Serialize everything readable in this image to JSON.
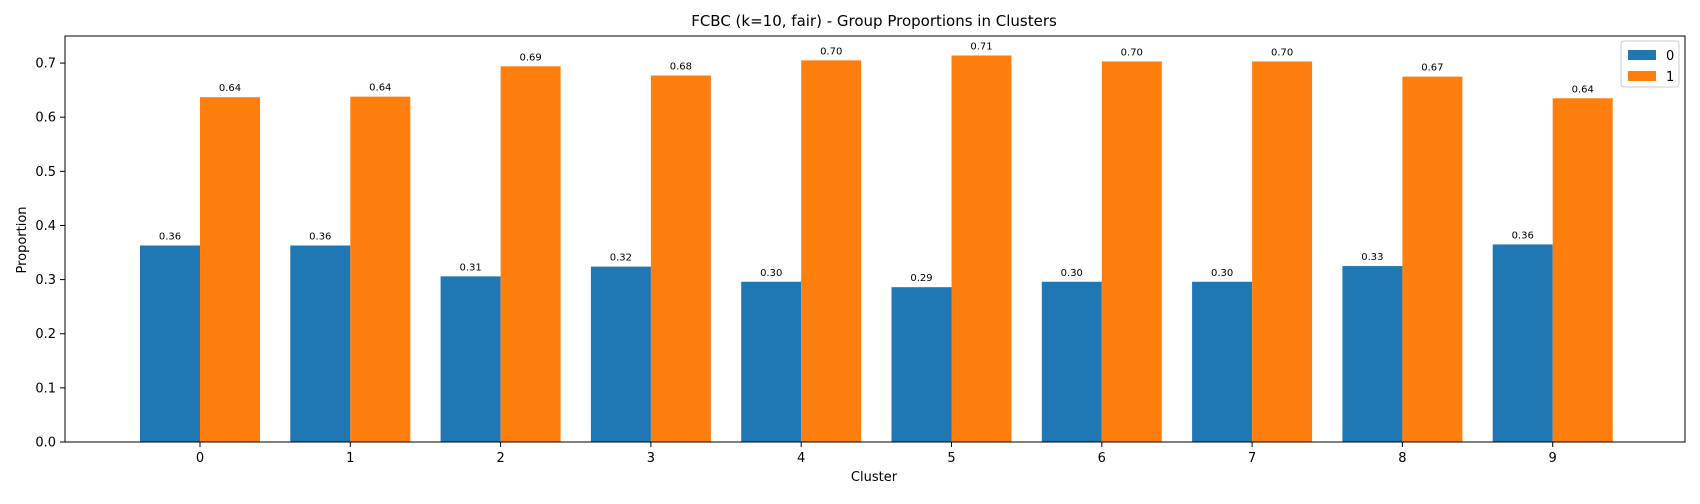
{
  "chart_data": {
    "type": "bar",
    "title": "FCBC (k=10, fair) - Group Proportions in Clusters",
    "xlabel": "Cluster",
    "ylabel": "Proportion",
    "categories": [
      "0",
      "1",
      "2",
      "3",
      "4",
      "5",
      "6",
      "7",
      "8",
      "9"
    ],
    "series": [
      {
        "name": "0",
        "color": "#1f77b4",
        "values": [
          0.363,
          0.363,
          0.306,
          0.324,
          0.296,
          0.286,
          0.296,
          0.296,
          0.325,
          0.365
        ],
        "labels": [
          "0.36",
          "0.36",
          "0.31",
          "0.32",
          "0.30",
          "0.29",
          "0.30",
          "0.30",
          "0.33",
          "0.36"
        ]
      },
      {
        "name": "1",
        "color": "#ff7f0e",
        "values": [
          0.637,
          0.638,
          0.694,
          0.677,
          0.705,
          0.714,
          0.703,
          0.703,
          0.675,
          0.635
        ],
        "labels": [
          "0.64",
          "0.64",
          "0.69",
          "0.68",
          "0.70",
          "0.71",
          "0.70",
          "0.70",
          "0.67",
          "0.64"
        ]
      }
    ],
    "ylim": [
      0,
      0.75
    ],
    "yticks": [
      0.0,
      0.1,
      0.2,
      0.3,
      0.4,
      0.5,
      0.6,
      0.7
    ],
    "ytick_labels": [
      "0.0",
      "0.1",
      "0.2",
      "0.3",
      "0.4",
      "0.5",
      "0.6",
      "0.7"
    ],
    "grid": false,
    "legend_position": "top-right"
  }
}
